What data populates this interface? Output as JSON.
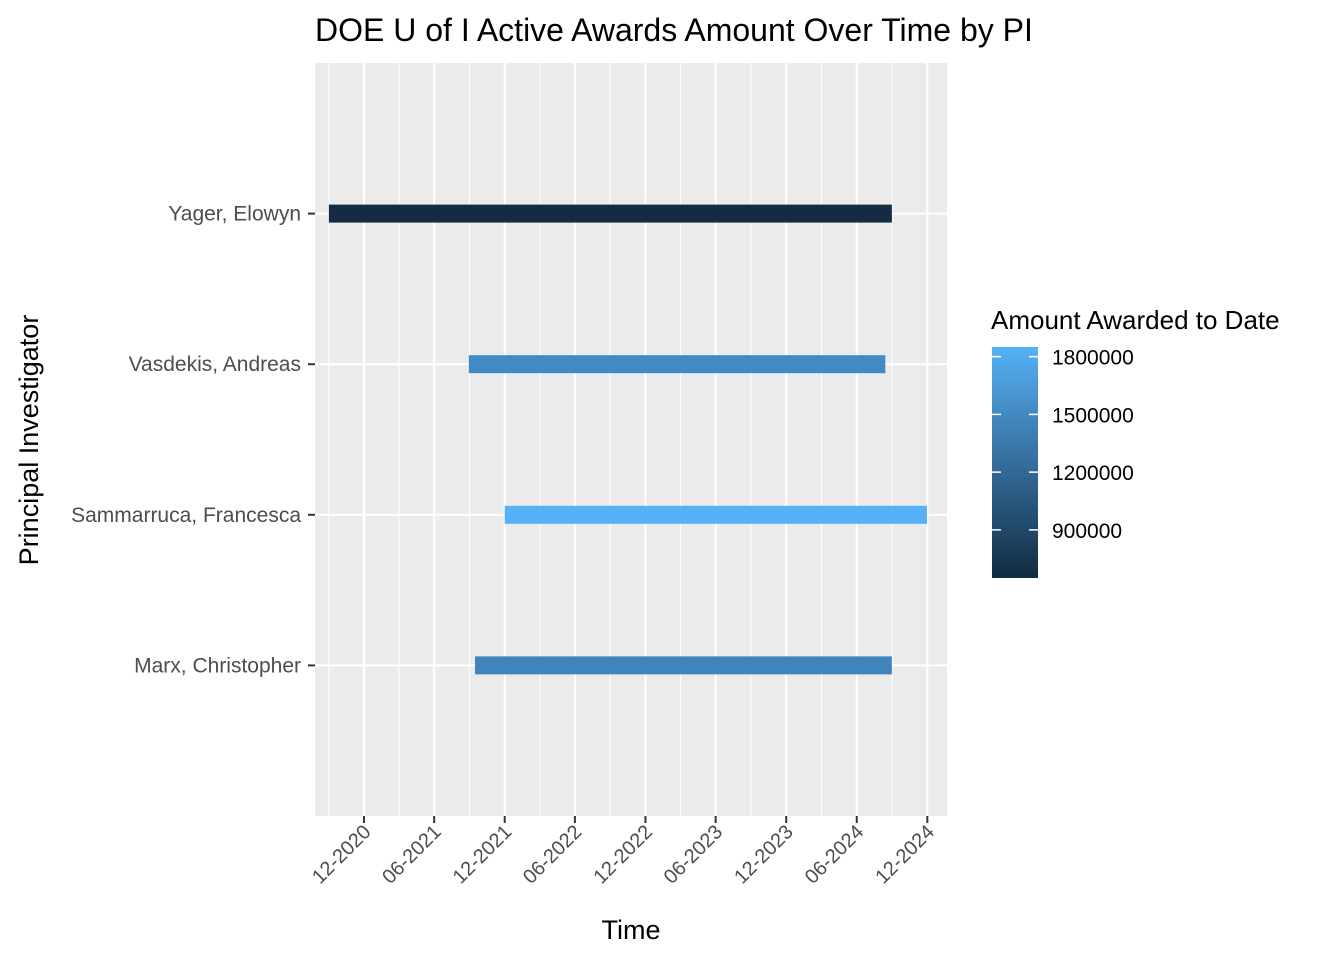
{
  "chart_data": {
    "type": "gantt",
    "title": "DOE U of I Active Awards Amount Over Time by PI",
    "xlabel": "Time",
    "ylabel": "Principal Investigator",
    "x_tick_labels": [
      "12-2020",
      "06-2021",
      "12-2021",
      "06-2022",
      "12-2022",
      "06-2023",
      "12-2023",
      "06-2024",
      "12-2024"
    ],
    "x_ticks": [
      "2020-12-01",
      "2021-06-01",
      "2021-12-01",
      "2022-06-01",
      "2022-12-01",
      "2023-06-01",
      "2023-12-01",
      "2024-06-01",
      "2024-12-01"
    ],
    "xlim": [
      "2020-07-27",
      "2025-01-21"
    ],
    "categories": [
      "Yager, Elowyn",
      "Vasdekis, Andreas",
      "Sammarruca, Francesca",
      "Marx, Christopher"
    ],
    "bars": [
      {
        "pi": "Yager, Elowyn",
        "start": "2020-09-01",
        "end": "2024-08-31",
        "amount": 650000
      },
      {
        "pi": "Vasdekis, Andreas",
        "start": "2021-08-30",
        "end": "2024-08-14",
        "amount": 1500000
      },
      {
        "pi": "Sammarruca, Francesca",
        "start": "2021-12-01",
        "end": "2024-11-30",
        "amount": 1850000
      },
      {
        "pi": "Marx, Christopher",
        "start": "2021-09-15",
        "end": "2024-08-31",
        "amount": 1450000
      }
    ],
    "legend": {
      "title": "Amount Awarded to Date",
      "placement": "right",
      "breaks": [
        1800000,
        1500000,
        1200000,
        900000
      ],
      "labels": [
        "1800000",
        "1500000",
        "1200000",
        "900000"
      ],
      "range": [
        650000,
        1850000
      ],
      "color_low": "#132b43",
      "color_high": "#56b1f7"
    },
    "panel_background": "#ebebeb",
    "grid": true
  }
}
